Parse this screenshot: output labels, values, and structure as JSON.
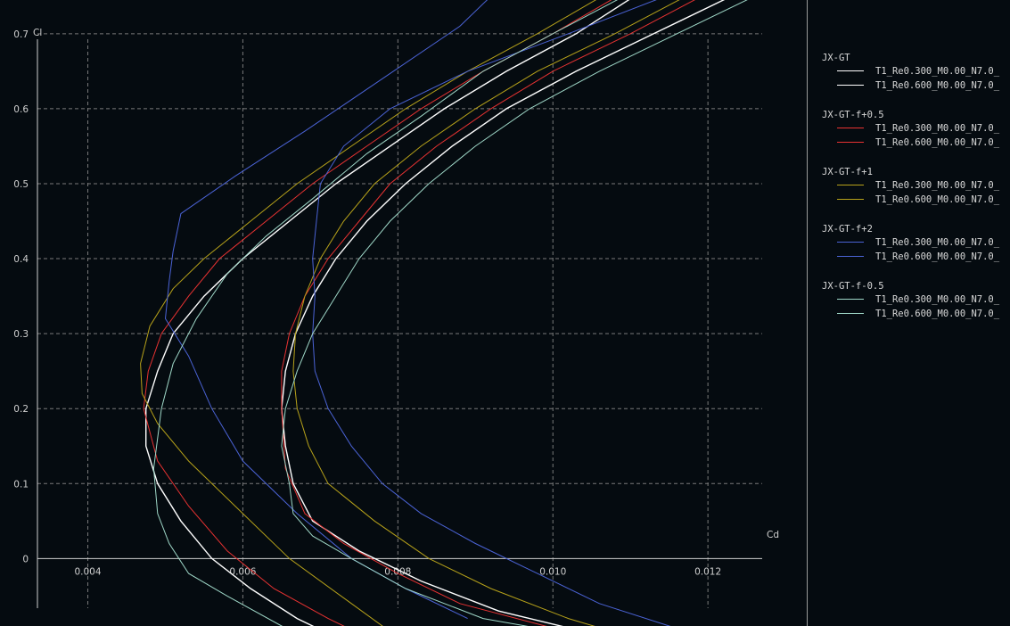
{
  "chart_data": {
    "type": "line",
    "xlabel": "Cd",
    "ylabel": "Cl",
    "xlim": [
      0.00335,
      0.0127
    ],
    "ylim": [
      -0.09,
      0.745
    ],
    "x_ticks": [
      0.004,
      0.006,
      0.008,
      0.01,
      0.012
    ],
    "x_tick_labels": [
      "0.004",
      "0.006",
      "0.008",
      "0.010",
      "0.012"
    ],
    "y_ticks": [
      0,
      0.1,
      0.2,
      0.3,
      0.4,
      0.5,
      0.6,
      0.7
    ],
    "y_tick_labels": [
      "0",
      "0.1",
      "0.2",
      "0.3",
      "0.4",
      "0.5",
      "0.6",
      "0.7"
    ],
    "grid": true,
    "legend_placement": "right",
    "groups": [
      {
        "name": "JX-GT",
        "series": [
          {
            "name": "T1_Re0.300_M0.00_N7.0_",
            "color": "#ffffff",
            "points": [
              [
                0.012,
                -0.12
              ],
              [
                0.0105,
                -0.1
              ],
              [
                0.0093,
                -0.07
              ],
              [
                0.0083,
                -0.03
              ],
              [
                0.0075,
                0.01
              ],
              [
                0.0069,
                0.05
              ],
              [
                0.00665,
                0.1
              ],
              [
                0.00655,
                0.15
              ],
              [
                0.0065,
                0.2
              ],
              [
                0.00655,
                0.25
              ],
              [
                0.00668,
                0.3
              ],
              [
                0.0069,
                0.35
              ],
              [
                0.0072,
                0.4
              ],
              [
                0.0076,
                0.45
              ],
              [
                0.0081,
                0.5
              ],
              [
                0.0087,
                0.55
              ],
              [
                0.0094,
                0.6
              ],
              [
                0.0103,
                0.65
              ],
              [
                0.0113,
                0.7
              ],
              [
                0.0125,
                0.76
              ]
            ]
          },
          {
            "name": "T1_Re0.600_M0.00_N7.0_",
            "color": "#ffffff",
            "points": [
              [
                0.0075,
                -0.12
              ],
              [
                0.0067,
                -0.08
              ],
              [
                0.0061,
                -0.04
              ],
              [
                0.0056,
                0.0
              ],
              [
                0.0052,
                0.05
              ],
              [
                0.0049,
                0.1
              ],
              [
                0.00475,
                0.15
              ],
              [
                0.00475,
                0.2
              ],
              [
                0.0049,
                0.25
              ],
              [
                0.0051,
                0.3
              ],
              [
                0.0055,
                0.35
              ],
              [
                0.006,
                0.4
              ],
              [
                0.0066,
                0.45
              ],
              [
                0.0072,
                0.5
              ],
              [
                0.0079,
                0.55
              ],
              [
                0.0086,
                0.6
              ],
              [
                0.0094,
                0.65
              ],
              [
                0.0103,
                0.7
              ],
              [
                0.0112,
                0.76
              ]
            ]
          }
        ]
      },
      {
        "name": "JX-GT-f+0.5",
        "series": [
          {
            "name": "T1_Re0.300_M0.00_N7.0_",
            "color": "#e83232",
            "points": [
              [
                0.0112,
                -0.12
              ],
              [
                0.0099,
                -0.09
              ],
              [
                0.0088,
                -0.06
              ],
              [
                0.008,
                -0.02
              ],
              [
                0.0073,
                0.02
              ],
              [
                0.0068,
                0.06
              ],
              [
                0.00655,
                0.12
              ],
              [
                0.0065,
                0.2
              ],
              [
                0.0065,
                0.25
              ],
              [
                0.0066,
                0.3
              ],
              [
                0.0068,
                0.35
              ],
              [
                0.0071,
                0.4
              ],
              [
                0.0075,
                0.45
              ],
              [
                0.0079,
                0.5
              ],
              [
                0.0085,
                0.55
              ],
              [
                0.0092,
                0.6
              ],
              [
                0.01,
                0.65
              ],
              [
                0.011,
                0.7
              ],
              [
                0.0121,
                0.76
              ]
            ]
          },
          {
            "name": "T1_Re0.600_M0.00_N7.0_",
            "color": "#e83232",
            "points": [
              [
                0.0079,
                -0.12
              ],
              [
                0.0071,
                -0.08
              ],
              [
                0.0064,
                -0.04
              ],
              [
                0.0058,
                0.01
              ],
              [
                0.0053,
                0.07
              ],
              [
                0.0049,
                0.13
              ],
              [
                0.00472,
                0.2
              ],
              [
                0.00478,
                0.25
              ],
              [
                0.00495,
                0.3
              ],
              [
                0.0053,
                0.35
              ],
              [
                0.0057,
                0.4
              ],
              [
                0.0063,
                0.45
              ],
              [
                0.0069,
                0.5
              ],
              [
                0.0076,
                0.55
              ],
              [
                0.0083,
                0.6
              ],
              [
                0.0091,
                0.65
              ],
              [
                0.01,
                0.7
              ],
              [
                0.011,
                0.76
              ]
            ]
          }
        ]
      },
      {
        "name": "JX-GT-f+1",
        "series": [
          {
            "name": "T1_Re0.300_M0.00_N7.0_",
            "color": "#b7a21a",
            "points": [
              [
                0.0115,
                -0.12
              ],
              [
                0.0102,
                -0.08
              ],
              [
                0.0092,
                -0.04
              ],
              [
                0.0084,
                0.0
              ],
              [
                0.0077,
                0.05
              ],
              [
                0.0071,
                0.1
              ],
              [
                0.00685,
                0.15
              ],
              [
                0.0067,
                0.2
              ],
              [
                0.00665,
                0.25
              ],
              [
                0.00668,
                0.3
              ],
              [
                0.0068,
                0.35
              ],
              [
                0.007,
                0.4
              ],
              [
                0.0073,
                0.45
              ],
              [
                0.0077,
                0.5
              ],
              [
                0.0083,
                0.55
              ],
              [
                0.009,
                0.6
              ],
              [
                0.0098,
                0.65
              ],
              [
                0.0108,
                0.7
              ],
              [
                0.0119,
                0.76
              ]
            ]
          },
          {
            "name": "T1_Re0.600_M0.00_N7.0_",
            "color": "#b7a21a",
            "points": [
              [
                0.0082,
                -0.12
              ],
              [
                0.0074,
                -0.06
              ],
              [
                0.0066,
                0.0
              ],
              [
                0.0059,
                0.07
              ],
              [
                0.0053,
                0.13
              ],
              [
                0.0049,
                0.18
              ],
              [
                0.0047,
                0.22
              ],
              [
                0.00468,
                0.26
              ],
              [
                0.0048,
                0.31
              ],
              [
                0.0051,
                0.36
              ],
              [
                0.0055,
                0.4
              ],
              [
                0.0061,
                0.45
              ],
              [
                0.0067,
                0.5
              ],
              [
                0.0074,
                0.55
              ],
              [
                0.0081,
                0.6
              ],
              [
                0.0089,
                0.65
              ],
              [
                0.0098,
                0.7
              ],
              [
                0.0108,
                0.76
              ]
            ]
          }
        ]
      },
      {
        "name": "JX-GT-f+2",
        "series": [
          {
            "name": "T1_Re0.300_M0.00_N7.0_",
            "color": "#4b63d6",
            "points": [
              [
                0.0124,
                -0.12
              ],
              [
                0.0115,
                -0.09
              ],
              [
                0.0106,
                -0.06
              ],
              [
                0.0098,
                -0.02
              ],
              [
                0.009,
                0.02
              ],
              [
                0.0083,
                0.06
              ],
              [
                0.0078,
                0.1
              ],
              [
                0.0074,
                0.15
              ],
              [
                0.0071,
                0.2
              ],
              [
                0.00693,
                0.25
              ],
              [
                0.0069,
                0.3
              ],
              [
                0.00693,
                0.35
              ],
              [
                0.0069,
                0.4
              ],
              [
                0.00695,
                0.45
              ],
              [
                0.007,
                0.5
              ],
              [
                0.0073,
                0.55
              ],
              [
                0.0079,
                0.6
              ],
              [
                0.0089,
                0.65
              ],
              [
                0.0102,
                0.7
              ],
              [
                0.0117,
                0.76
              ]
            ]
          },
          {
            "name": "T1_Re0.600_M0.00_N7.0_",
            "color": "#4b63d6",
            "points": [
              [
                0.0089,
                -0.08
              ],
              [
                0.0081,
                -0.04
              ],
              [
                0.0074,
                0.0
              ],
              [
                0.0067,
                0.06
              ],
              [
                0.006,
                0.13
              ],
              [
                0.0056,
                0.2
              ],
              [
                0.0053,
                0.27
              ],
              [
                0.005,
                0.32
              ],
              [
                0.00505,
                0.37
              ],
              [
                0.0051,
                0.41
              ],
              [
                0.0052,
                0.46
              ],
              [
                0.0059,
                0.51
              ],
              [
                0.0068,
                0.57
              ],
              [
                0.0078,
                0.64
              ],
              [
                0.0088,
                0.71
              ],
              [
                0.0093,
                0.76
              ]
            ]
          }
        ]
      },
      {
        "name": "JX-GT-f-0.5",
        "series": [
          {
            "name": "T1_Re0.300_M0.00_N7.0_",
            "color": "#9fd8c8",
            "points": [
              [
                0.0116,
                -0.12
              ],
              [
                0.0102,
                -0.1
              ],
              [
                0.0091,
                -0.08
              ],
              [
                0.0081,
                -0.04
              ],
              [
                0.0074,
                0.0
              ],
              [
                0.0069,
                0.03
              ],
              [
                0.00665,
                0.06
              ],
              [
                0.0066,
                0.1
              ],
              [
                0.0065,
                0.15
              ],
              [
                0.00655,
                0.2
              ],
              [
                0.0067,
                0.25
              ],
              [
                0.0069,
                0.3
              ],
              [
                0.0072,
                0.35
              ],
              [
                0.0075,
                0.4
              ],
              [
                0.0079,
                0.45
              ],
              [
                0.0084,
                0.5
              ],
              [
                0.009,
                0.55
              ],
              [
                0.0097,
                0.6
              ],
              [
                0.0106,
                0.65
              ],
              [
                0.0116,
                0.7
              ],
              [
                0.0128,
                0.76
              ]
            ]
          },
          {
            "name": "T1_Re0.600_M0.00_N7.0_",
            "color": "#9fd8c8",
            "points": [
              [
                0.0073,
                -0.12
              ],
              [
                0.0065,
                -0.09
              ],
              [
                0.0058,
                -0.05
              ],
              [
                0.0053,
                -0.02
              ],
              [
                0.00505,
                0.02
              ],
              [
                0.0049,
                0.06
              ],
              [
                0.00485,
                0.12
              ],
              [
                0.00495,
                0.2
              ],
              [
                0.0051,
                0.26
              ],
              [
                0.0054,
                0.32
              ],
              [
                0.0058,
                0.38
              ],
              [
                0.0063,
                0.43
              ],
              [
                0.0069,
                0.48
              ],
              [
                0.0076,
                0.54
              ],
              [
                0.0083,
                0.59
              ],
              [
                0.0091,
                0.65
              ],
              [
                0.01,
                0.7
              ],
              [
                0.0111,
                0.76
              ]
            ]
          }
        ]
      }
    ]
  }
}
